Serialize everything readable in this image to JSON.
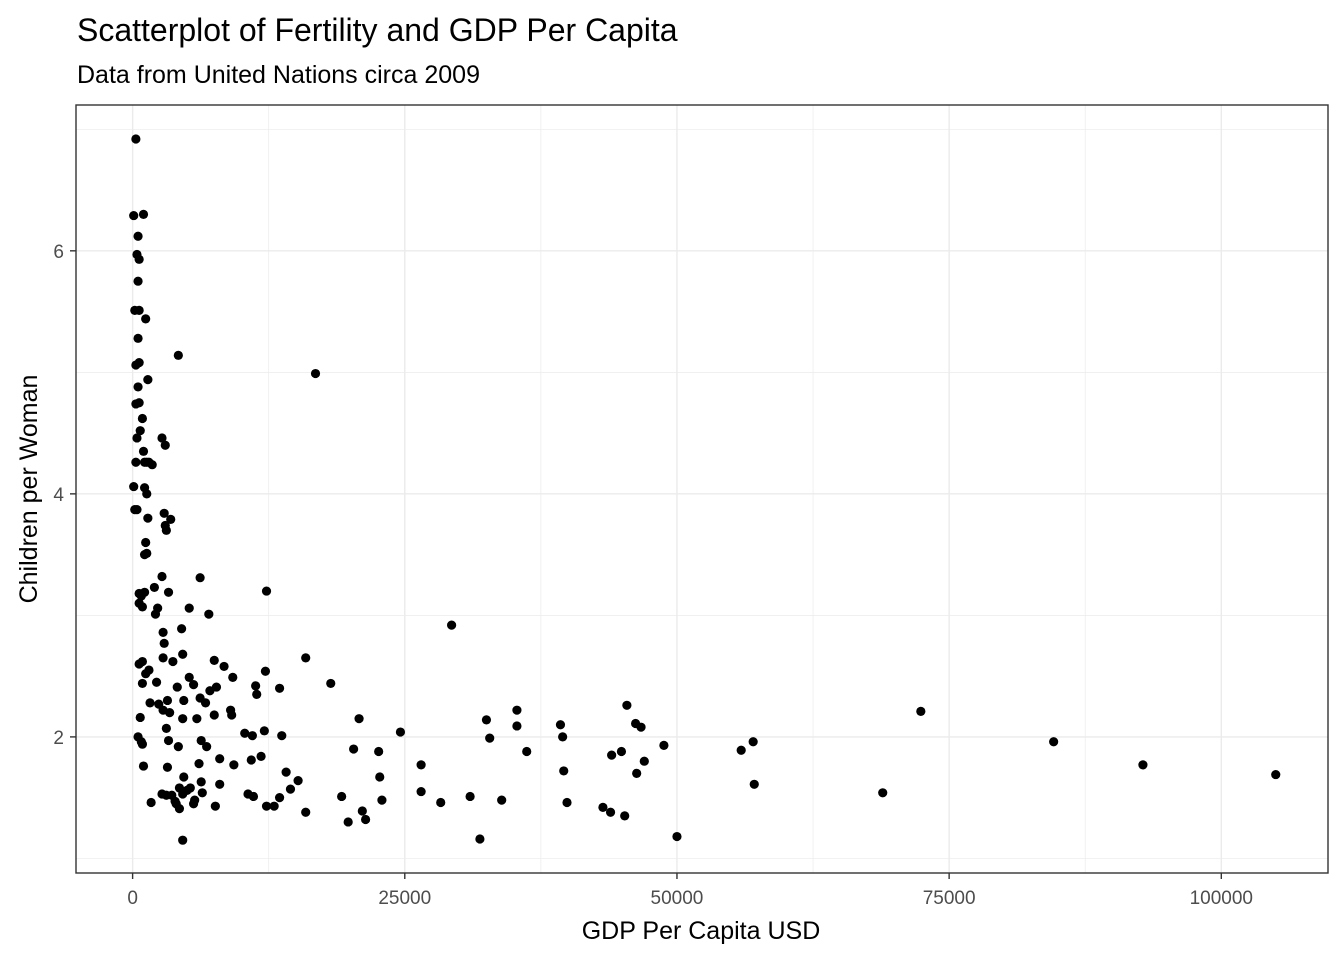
{
  "chart_data": {
    "type": "scatter",
    "title": "Scatterplot of Fertility and GDP Per Capita",
    "subtitle": "Data from United Nations circa 2009",
    "xlabel": "GDP Per Capita USD",
    "ylabel": "Children per Woman",
    "xlim": [
      -5200,
      109800
    ],
    "ylim": [
      0.88,
      7.2
    ],
    "xticks": [
      0,
      25000,
      50000,
      75000,
      100000
    ],
    "xtick_labels": [
      "0",
      "25000",
      "50000",
      "75000",
      "100000"
    ],
    "yticks": [
      2,
      4,
      6
    ],
    "ytick_labels": [
      "2",
      "4",
      "6"
    ],
    "grid": true,
    "theme": "bw",
    "colors": {
      "point": "#000000",
      "grid": "#ebebeb",
      "panel_border": "#333333",
      "tick_text": "#4d4d4d"
    },
    "points": [
      [
        300,
        6.92
      ],
      [
        100,
        6.29
      ],
      [
        1000,
        6.3
      ],
      [
        500,
        6.12
      ],
      [
        400,
        5.97
      ],
      [
        600,
        5.93
      ],
      [
        500,
        5.75
      ],
      [
        200,
        5.51
      ],
      [
        600,
        5.51
      ],
      [
        1200,
        5.44
      ],
      [
        4200,
        5.14
      ],
      [
        16800,
        4.99
      ],
      [
        500,
        5.28
      ],
      [
        300,
        5.06
      ],
      [
        600,
        5.08
      ],
      [
        1400,
        4.94
      ],
      [
        500,
        4.88
      ],
      [
        300,
        4.74
      ],
      [
        600,
        4.75
      ],
      [
        900,
        4.62
      ],
      [
        700,
        4.52
      ],
      [
        400,
        4.46
      ],
      [
        2700,
        4.46
      ],
      [
        3000,
        4.4
      ],
      [
        300,
        4.26
      ],
      [
        1000,
        4.35
      ],
      [
        1300,
        4.26
      ],
      [
        1500,
        4.26
      ],
      [
        1800,
        4.24
      ],
      [
        1100,
        4.26
      ],
      [
        100,
        4.06
      ],
      [
        1100,
        4.05
      ],
      [
        1300,
        4.0
      ],
      [
        200,
        3.87
      ],
      [
        400,
        3.87
      ],
      [
        2900,
        3.84
      ],
      [
        1400,
        3.8
      ],
      [
        3500,
        3.79
      ],
      [
        3000,
        3.74
      ],
      [
        3100,
        3.7
      ],
      [
        1200,
        3.6
      ],
      [
        1100,
        3.5
      ],
      [
        1300,
        3.51
      ],
      [
        2700,
        3.32
      ],
      [
        6200,
        3.31
      ],
      [
        2000,
        3.23
      ],
      [
        3300,
        3.19
      ],
      [
        12300,
        3.2
      ],
      [
        600,
        3.18
      ],
      [
        800,
        3.16
      ],
      [
        1100,
        3.19
      ],
      [
        600,
        3.1
      ],
      [
        900,
        3.07
      ],
      [
        2300,
        3.06
      ],
      [
        5200,
        3.06
      ],
      [
        7000,
        3.01
      ],
      [
        2100,
        3.01
      ],
      [
        29300,
        2.92
      ],
      [
        4500,
        2.89
      ],
      [
        2800,
        2.86
      ],
      [
        2900,
        2.77
      ],
      [
        4600,
        2.68
      ],
      [
        15900,
        2.65
      ],
      [
        2800,
        2.65
      ],
      [
        7500,
        2.63
      ],
      [
        600,
        2.6
      ],
      [
        900,
        2.62
      ],
      [
        3700,
        2.62
      ],
      [
        8400,
        2.58
      ],
      [
        1500,
        2.55
      ],
      [
        1200,
        2.52
      ],
      [
        12200,
        2.54
      ],
      [
        5200,
        2.49
      ],
      [
        9200,
        2.49
      ],
      [
        900,
        2.44
      ],
      [
        18200,
        2.44
      ],
      [
        2200,
        2.45
      ],
      [
        5600,
        2.43
      ],
      [
        4100,
        2.41
      ],
      [
        7700,
        2.41
      ],
      [
        11300,
        2.42
      ],
      [
        13500,
        2.4
      ],
      [
        7100,
        2.38
      ],
      [
        11400,
        2.35
      ],
      [
        6200,
        2.32
      ],
      [
        3200,
        2.3
      ],
      [
        4700,
        2.3
      ],
      [
        6700,
        2.28
      ],
      [
        1600,
        2.28
      ],
      [
        2400,
        2.27
      ],
      [
        72400,
        2.21
      ],
      [
        35300,
        2.22
      ],
      [
        45400,
        2.26
      ],
      [
        9000,
        2.22
      ],
      [
        2800,
        2.22
      ],
      [
        3400,
        2.2
      ],
      [
        7500,
        2.18
      ],
      [
        9100,
        2.18
      ],
      [
        700,
        2.16
      ],
      [
        4600,
        2.15
      ],
      [
        5900,
        2.15
      ],
      [
        20800,
        2.15
      ],
      [
        32500,
        2.14
      ],
      [
        39300,
        2.1
      ],
      [
        35300,
        2.09
      ],
      [
        46200,
        2.11
      ],
      [
        46700,
        2.08
      ],
      [
        24600,
        2.04
      ],
      [
        12100,
        2.05
      ],
      [
        10300,
        2.03
      ],
      [
        11000,
        2.01
      ],
      [
        3100,
        2.07
      ],
      [
        13700,
        2.01
      ],
      [
        500,
        2.0
      ],
      [
        800,
        1.96
      ],
      [
        900,
        1.94
      ],
      [
        3300,
        1.97
      ],
      [
        6300,
        1.97
      ],
      [
        32800,
        1.99
      ],
      [
        39500,
        2.0
      ],
      [
        57000,
        1.96
      ],
      [
        84600,
        1.96
      ],
      [
        48800,
        1.93
      ],
      [
        4200,
        1.92
      ],
      [
        6800,
        1.92
      ],
      [
        20300,
        1.9
      ],
      [
        22600,
        1.88
      ],
      [
        36200,
        1.88
      ],
      [
        44900,
        1.88
      ],
      [
        55900,
        1.89
      ],
      [
        44000,
        1.85
      ],
      [
        8000,
        1.82
      ],
      [
        10900,
        1.81
      ],
      [
        11800,
        1.84
      ],
      [
        47000,
        1.8
      ],
      [
        92800,
        1.77
      ],
      [
        1000,
        1.76
      ],
      [
        3200,
        1.75
      ],
      [
        6100,
        1.78
      ],
      [
        9300,
        1.77
      ],
      [
        26500,
        1.77
      ],
      [
        39600,
        1.72
      ],
      [
        14100,
        1.71
      ],
      [
        46300,
        1.7
      ],
      [
        105000,
        1.69
      ],
      [
        4700,
        1.67
      ],
      [
        22700,
        1.67
      ],
      [
        15200,
        1.64
      ],
      [
        6300,
        1.63
      ],
      [
        8000,
        1.61
      ],
      [
        57100,
        1.61
      ],
      [
        4300,
        1.58
      ],
      [
        5300,
        1.58
      ],
      [
        14500,
        1.57
      ],
      [
        5000,
        1.56
      ],
      [
        4600,
        1.53
      ],
      [
        6400,
        1.54
      ],
      [
        26500,
        1.55
      ],
      [
        68900,
        1.54
      ],
      [
        2700,
        1.53
      ],
      [
        3100,
        1.52
      ],
      [
        3600,
        1.52
      ],
      [
        10600,
        1.53
      ],
      [
        11100,
        1.51
      ],
      [
        19200,
        1.51
      ],
      [
        31000,
        1.51
      ],
      [
        5700,
        1.48
      ],
      [
        13500,
        1.5
      ],
      [
        22900,
        1.48
      ],
      [
        33900,
        1.48
      ],
      [
        3900,
        1.47
      ],
      [
        1700,
        1.46
      ],
      [
        4000,
        1.45
      ],
      [
        5600,
        1.45
      ],
      [
        28300,
        1.46
      ],
      [
        39900,
        1.46
      ],
      [
        7600,
        1.43
      ],
      [
        12300,
        1.43
      ],
      [
        13000,
        1.43
      ],
      [
        43200,
        1.42
      ],
      [
        4300,
        1.41
      ],
      [
        21100,
        1.39
      ],
      [
        15900,
        1.38
      ],
      [
        43900,
        1.38
      ],
      [
        45200,
        1.35
      ],
      [
        19800,
        1.3
      ],
      [
        21400,
        1.32
      ],
      [
        50000,
        1.18
      ],
      [
        31900,
        1.16
      ],
      [
        4600,
        1.15
      ]
    ]
  }
}
